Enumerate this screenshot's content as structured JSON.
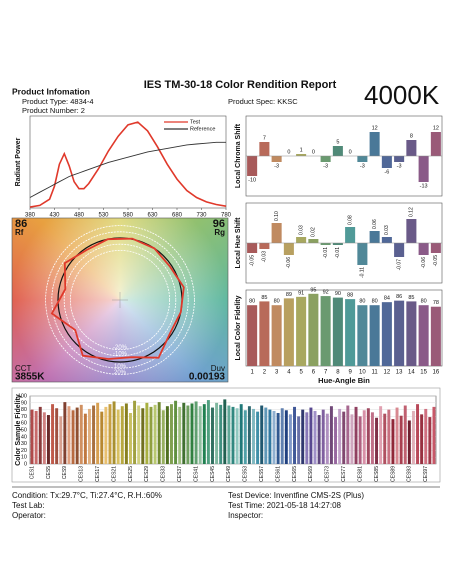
{
  "header": {
    "title": "IES TM-30-18 Color Rendition Report",
    "section": "Product Infomation",
    "product_type": "Product Type: 4834-4",
    "product_number": "Product Number: 2",
    "product_spec": "Product Spec: KKSC",
    "cct_nominal": "4000K"
  },
  "chart_data": [
    {
      "type": "line",
      "ylabel": "Radiant Power",
      "x": [
        380,
        400,
        420,
        430,
        440,
        450,
        460,
        470,
        480,
        490,
        500,
        520,
        540,
        560,
        580,
        600,
        620,
        640,
        660,
        680,
        700,
        720,
        740,
        760,
        780
      ],
      "xlim": [
        380,
        780
      ],
      "xticks": [
        380,
        430,
        480,
        530,
        580,
        630,
        680,
        730,
        780
      ],
      "ylim": [
        0,
        1.05
      ],
      "series": [
        {
          "name": "Test",
          "color": "#e0392b",
          "values": [
            0.01,
            0.03,
            0.1,
            0.25,
            0.5,
            0.62,
            0.48,
            0.3,
            0.22,
            0.22,
            0.28,
            0.45,
            0.65,
            0.82,
            0.95,
            0.98,
            0.88,
            0.7,
            0.5,
            0.33,
            0.2,
            0.12,
            0.07,
            0.04,
            0.02
          ]
        },
        {
          "name": "Reference",
          "color": "#333333",
          "values": [
            0.12,
            0.18,
            0.24,
            0.27,
            0.3,
            0.33,
            0.36,
            0.38,
            0.4,
            0.42,
            0.44,
            0.48,
            0.52,
            0.55,
            0.58,
            0.61,
            0.64,
            0.66,
            0.68,
            0.7,
            0.72,
            0.73,
            0.74,
            0.75,
            0.75
          ]
        }
      ]
    },
    {
      "type": "bar",
      "ylabel": "Local Chroma Shift",
      "ylim": [
        -20,
        20
      ],
      "values": [
        -10,
        7,
        -3,
        0,
        1,
        0,
        -3,
        5,
        0,
        -3,
        12,
        -6,
        -3,
        8,
        -13,
        12
      ],
      "colors": [
        "#a85a5a",
        "#b86a5a",
        "#c08a60",
        "#b8a060",
        "#a8a860",
        "#8aa060",
        "#6a9a70",
        "#508a78",
        "#509a98",
        "#508898",
        "#4a7898",
        "#506898",
        "#5a6090",
        "#6a5a88",
        "#8a5a88",
        "#9a5a78"
      ]
    },
    {
      "type": "bar",
      "ylabel": "Local Hue Shift",
      "ylim": [
        -0.2,
        0.2
      ],
      "values": [
        -0.05,
        -0.03,
        0.1,
        -0.06,
        0.03,
        0.02,
        -0.01,
        -0.01,
        0.08,
        -0.11,
        0.06,
        0.03,
        -0.07,
        0.12,
        -0.06,
        -0.05
      ],
      "value_labels": [
        "-0.05",
        "-0.03",
        "0.10",
        "-0.06",
        "0.03",
        "0.02",
        "-0.01",
        "-0.01",
        "0.08",
        "-0.11",
        "0.06",
        "0.03",
        "-0.07",
        "0.12",
        "-0.06",
        "-0.05"
      ],
      "colors": [
        "#a85a5a",
        "#b86a5a",
        "#c08a60",
        "#b8a060",
        "#a8a860",
        "#8aa060",
        "#6a9a70",
        "#508a78",
        "#509a98",
        "#508898",
        "#4a7898",
        "#506898",
        "#5a6090",
        "#6a5a88",
        "#8a5a88",
        "#9a5a78"
      ]
    },
    {
      "type": "bar",
      "ylabel": "Local Color Fidelity",
      "xlabel": "Hue-Angle Bin",
      "ylim": [
        0,
        100
      ],
      "categories": [
        "1",
        "2",
        "3",
        "4",
        "5",
        "6",
        "7",
        "8",
        "9",
        "10",
        "11",
        "12",
        "13",
        "14",
        "15",
        "16"
      ],
      "values": [
        80,
        85,
        80,
        89,
        91,
        95,
        92,
        90,
        88,
        80,
        80,
        84,
        86,
        85,
        80,
        78
      ],
      "colors": [
        "#a85a5a",
        "#b86a5a",
        "#c08a60",
        "#b8a060",
        "#a8a860",
        "#8aa060",
        "#6a9a70",
        "#508a78",
        "#509a98",
        "#508898",
        "#4a7898",
        "#506898",
        "#5a6090",
        "#6a5a88",
        "#8a5a88",
        "#9a5a78"
      ]
    },
    {
      "type": "vector",
      "rf": 86,
      "rf_label": "Rf",
      "rg": 96,
      "rg_label": "Rg",
      "cct_label": "CCT",
      "cct": "3855K",
      "duv_label": "Duv",
      "duv": 0.00193,
      "rings": [
        {
          "value": -20,
          "label": "-20%"
        },
        {
          "value": -10,
          "label": "-10%"
        },
        {
          "value": 10,
          "label": "10%"
        },
        {
          "value": 20,
          "label": "20%"
        }
      ],
      "test_color": "#e0392b",
      "reference_color": "#111111"
    },
    {
      "type": "bar",
      "ylabel": "Color Sample Fidelity",
      "ylim": [
        0,
        100
      ],
      "yticks": [
        0,
        10,
        20,
        30,
        40,
        50,
        60,
        70,
        80,
        90,
        100
      ],
      "grid": true,
      "categories": [
        "CES1",
        null,
        null,
        null,
        "CES5",
        null,
        null,
        null,
        "CES9",
        null,
        null,
        null,
        "CES13",
        null,
        null,
        null,
        "CES17",
        null,
        null,
        null,
        "CES21",
        null,
        null,
        null,
        "CES25",
        null,
        null,
        null,
        "CES29",
        null,
        null,
        null,
        "CES33",
        null,
        null,
        null,
        "CES37",
        null,
        null,
        null,
        "CES41",
        null,
        null,
        null,
        "CES45",
        null,
        null,
        null,
        "CES49",
        null,
        null,
        null,
        "CES53",
        null,
        null,
        null,
        "CES57",
        null,
        null,
        null,
        "CES61",
        null,
        null,
        null,
        "CES65",
        null,
        null,
        null,
        "CES69",
        null,
        null,
        null,
        "CES73",
        null,
        null,
        null,
        "CES77",
        null,
        null,
        null,
        "CES81",
        null,
        null,
        null,
        "CES85",
        null,
        null,
        null,
        "CES89",
        null,
        null,
        null,
        "CES93",
        null,
        null,
        null,
        "CES97",
        null,
        null
      ],
      "values": [
        80,
        78,
        84,
        76,
        72,
        88,
        82,
        70,
        91,
        85,
        79,
        83,
        87,
        74,
        81,
        86,
        90,
        77,
        84,
        88,
        92,
        80,
        85,
        89,
        75,
        93,
        86,
        82,
        90,
        84,
        87,
        91,
        79,
        85,
        88,
        93,
        84,
        90,
        86,
        89,
        92,
        85,
        88,
        94,
        83,
        90,
        87,
        95,
        86,
        84,
        82,
        88,
        79,
        85,
        81,
        77,
        86,
        83,
        80,
        78,
        75,
        82,
        79,
        73,
        84,
        70,
        80,
        76,
        83,
        78,
        72,
        80,
        74,
        85,
        69,
        81,
        77,
        86,
        73,
        84,
        70,
        79,
        82,
        76,
        68,
        85,
        74,
        80,
        66,
        83,
        71,
        86,
        64,
        78,
        88,
        73,
        81,
        69,
        84
      ],
      "colors": [
        "#b04a4a",
        "#c86a6a",
        "#8a3a3a",
        "#d08080",
        "#6a2a2a",
        "#c05a4a",
        "#a05040",
        "#d8a090",
        "#804030",
        "#e0a080",
        "#b86a40",
        "#905030",
        "#d09060",
        "#c07840",
        "#e0b080",
        "#a87040",
        "#d8a050",
        "#b88830",
        "#e8c070",
        "#c8a040",
        "#a89030",
        "#d8c060",
        "#b8a840",
        "#888020",
        "#c8c060",
        "#a0a040",
        "#d0d080",
        "#707020",
        "#a8b040",
        "#90a040",
        "#b8c870",
        "#708830",
        "#98b060",
        "#507020",
        "#80a050",
        "#609040",
        "#a0c080",
        "#407030",
        "#70a060",
        "#308040",
        "#60a070",
        "#90c0a0",
        "#208050",
        "#50a080",
        "#307060",
        "#80b8a0",
        "#409080",
        "#206050",
        "#60a898",
        "#308880",
        "#90c8c0",
        "#207878",
        "#50a0a8",
        "#306870",
        "#80b8c0",
        "#4090a8",
        "#205870",
        "#6098b8",
        "#3078a0",
        "#90b0d0",
        "#305890",
        "#6080b0",
        "#204080",
        "#8098c8",
        "#405898",
        "#6870a8",
        "#303870",
        "#8878b8",
        "#584890",
        "#a090c8",
        "#604880",
        "#8060a0",
        "#b090c0",
        "#704878",
        "#9868a0",
        "#c0a0c8",
        "#804870",
        "#a86890",
        "#d0a8c0",
        "#904060",
        "#b06080",
        "#d890a8",
        "#a04860",
        "#c07088",
        "#803048",
        "#e0a0b0",
        "#b05060",
        "#c87080",
        "#902838",
        "#d88890",
        "#a84050",
        "#c06070",
        "#702030",
        "#e0b0b8",
        "#b84858",
        "#983040",
        "#d07080",
        "#a03848",
        "#c85868"
      ]
    }
  ],
  "footer": {
    "condition": "Condition: Tx:29.7°C, Ti:27.4°C, R.H.:60%",
    "test_lab": "Test Lab:",
    "operator": "Operator:",
    "test_device": "Test Device: Inventfine CMS-2S (Plus)",
    "test_time": "Test Time: 2021-05-18 14:27:08",
    "inspector": "Inspector:"
  }
}
